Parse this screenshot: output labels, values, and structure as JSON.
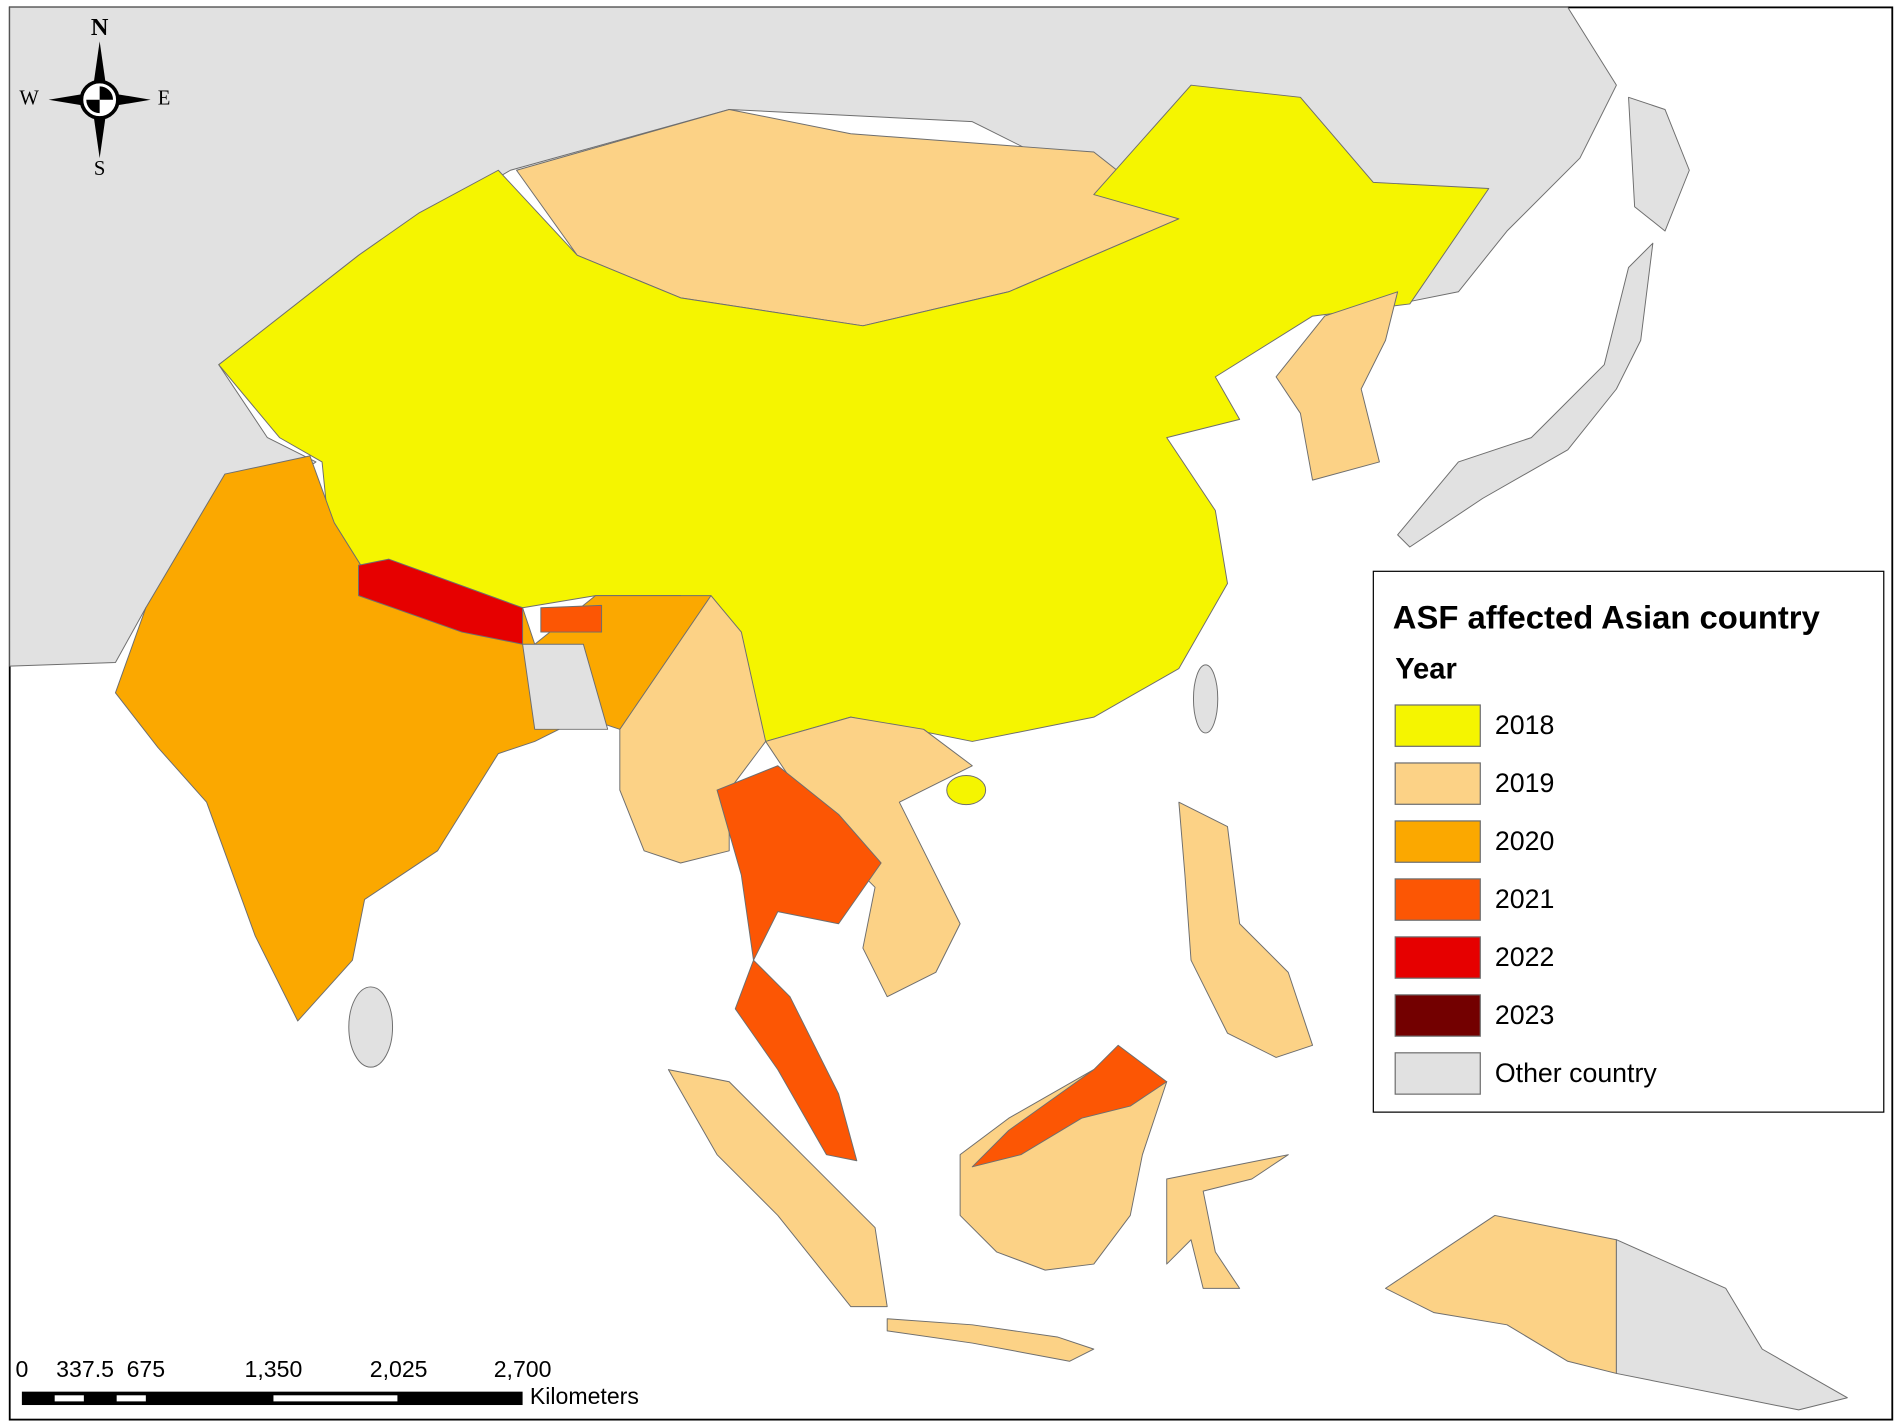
{
  "legend": {
    "title": "ASF affected Asian country",
    "subtitle": "Year",
    "items": [
      {
        "label": "2018",
        "color": "#f5f500"
      },
      {
        "label": "2019",
        "color": "#fcd286"
      },
      {
        "label": "2020",
        "color": "#fba800"
      },
      {
        "label": "2021",
        "color": "#fc5604"
      },
      {
        "label": "2022",
        "color": "#e60000"
      },
      {
        "label": "2023",
        "color": "#730000"
      },
      {
        "label": "Other country",
        "color": "#e1e1e1"
      }
    ]
  },
  "compass": {
    "n": "N",
    "s": "S",
    "e": "E",
    "w": "W"
  },
  "scale_bar": {
    "labels": [
      "0",
      "337.5",
      "675",
      "1,350",
      "2,025",
      "2,700"
    ],
    "unit": "Kilometers"
  }
}
